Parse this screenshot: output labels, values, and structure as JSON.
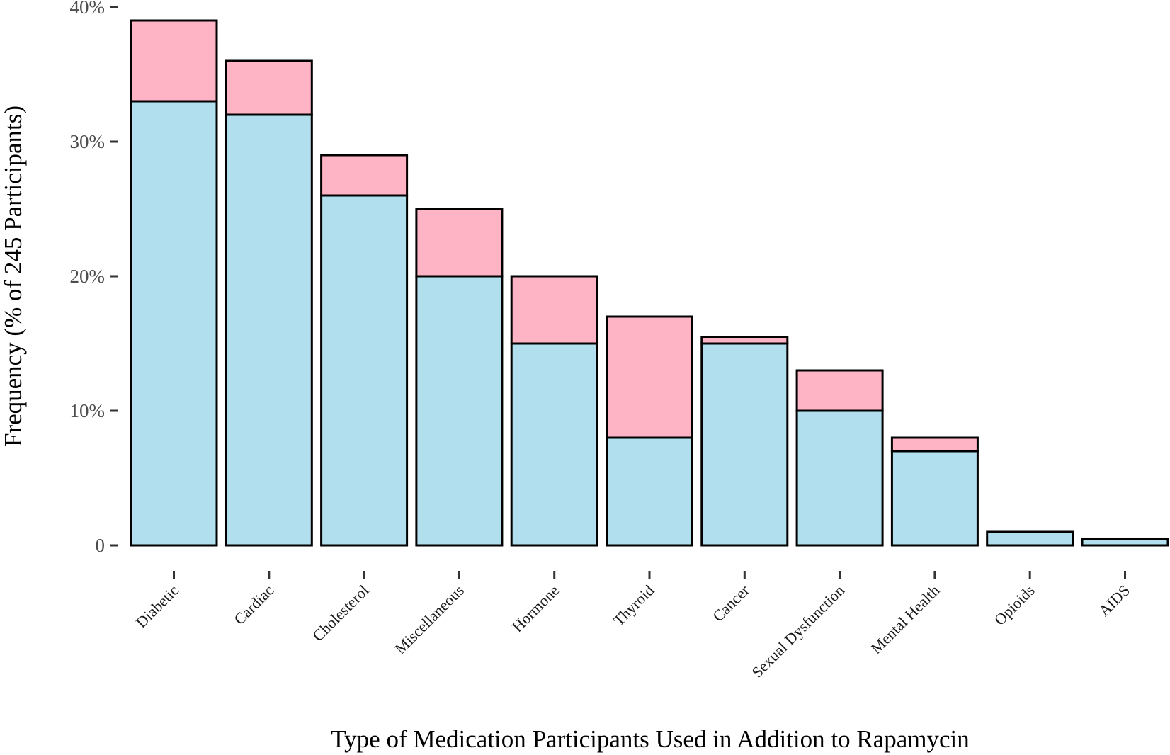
{
  "chart_data": {
    "type": "bar",
    "stacked": true,
    "xlabel": "Type of Medication Participants Used in Addition to Rapamycin",
    "ylabel": "Frequency (% of 245 Participants)",
    "ylim": [
      0,
      40
    ],
    "y_ticks": [
      0,
      10,
      20,
      30,
      40
    ],
    "y_tick_labels": [
      "0",
      "10%",
      "20%",
      "30%",
      "40%"
    ],
    "grid": false,
    "legend": "none",
    "categories": [
      "Diabetic",
      "Cardiac",
      "Cholesterol",
      "Miscellaneous",
      "Hormone",
      "Thyroid",
      "Cancer",
      "Sexual Dysfunction",
      "Mental Health",
      "Opioids",
      "AIDS"
    ],
    "series": [
      {
        "color": "#b2dfed",
        "values": [
          33,
          32,
          26,
          20,
          15,
          8,
          15,
          10,
          7,
          1,
          0.5
        ]
      },
      {
        "color": "#ffb4c6",
        "values": [
          6,
          4,
          3,
          5,
          5,
          9,
          0.5,
          3,
          1,
          0,
          0
        ]
      }
    ]
  }
}
